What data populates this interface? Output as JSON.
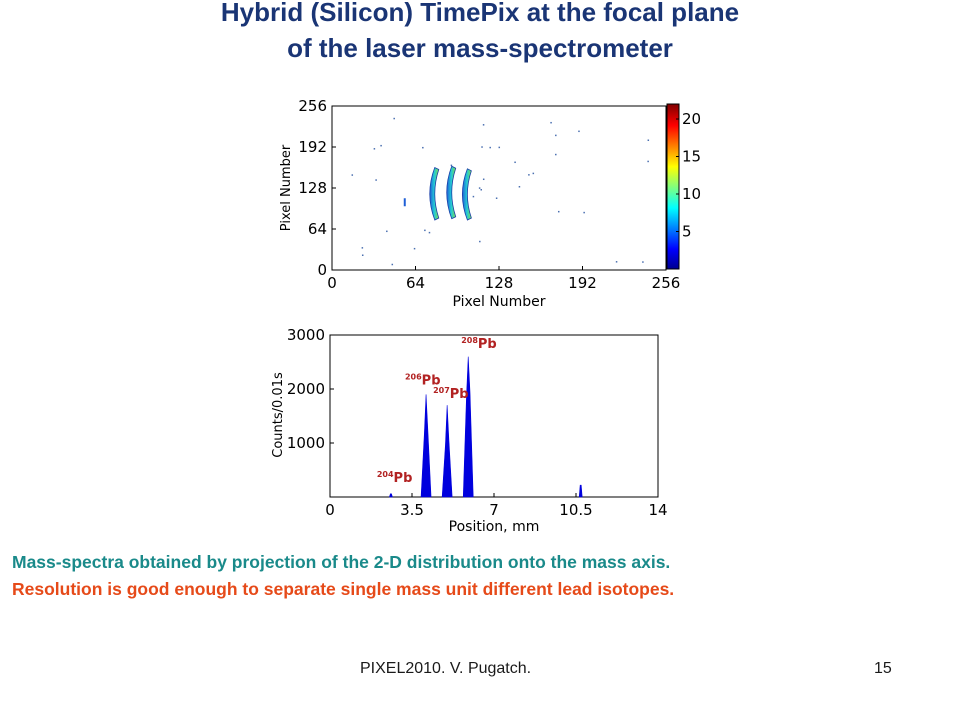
{
  "slide": {
    "title_line1": "Hybrid (Silicon) TimePix at the focal plane",
    "title_line2": "of the laser mass-spectrometer",
    "caption_line1": "Mass-spectra obtained by projection of the 2-D distribution onto the mass axis.",
    "caption_line2": "Resolution is good enough to separate single mass unit different lead isotopes.",
    "footer_left": "PIXEL2010. V. Pugatch.",
    "page_number": "15",
    "colors": {
      "title": "#1a3575",
      "caption1": "#1a8a8a",
      "caption2": "#e64a19",
      "isotope_label": "#b22222",
      "spectrum": "#0000dd"
    }
  },
  "chart_data": [
    {
      "type": "heatmap",
      "xlabel": "Pixel Number",
      "ylabel": "Pixel Number",
      "xlim": [
        0,
        256
      ],
      "ylim": [
        0,
        256
      ],
      "xticks": [
        "0",
        "64",
        "128",
        "192",
        "256"
      ],
      "yticks": [
        "0",
        "64",
        "128",
        "192",
        "256"
      ],
      "colorbar": {
        "ticks": [
          "5",
          "10",
          "15",
          "20"
        ],
        "range": [
          0,
          22
        ]
      },
      "arcs": [
        {
          "x_center": 78,
          "y_range": [
            78,
            160
          ]
        },
        {
          "x_center": 91,
          "y_range": [
            80,
            162
          ]
        },
        {
          "x_center": 103,
          "y_range": [
            78,
            158
          ]
        }
      ]
    },
    {
      "type": "area",
      "xlabel": "Position, mm",
      "ylabel": "Counts/0.01s",
      "xlim": [
        0,
        14
      ],
      "ylim": [
        0,
        3000
      ],
      "xticks": [
        "0",
        "3.5",
        "7",
        "10.5",
        "14"
      ],
      "yticks": [
        "1000",
        "2000",
        "3000"
      ],
      "peaks": [
        {
          "x": 2.6,
          "y": 60
        },
        {
          "x": 4.1,
          "y": 1900
        },
        {
          "x": 5.0,
          "y": 1700
        },
        {
          "x": 5.9,
          "y": 2600
        },
        {
          "x": 10.7,
          "y": 220
        }
      ],
      "annotations": [
        {
          "mass": "204",
          "element": "Pb",
          "x": 2.0,
          "y": 280
        },
        {
          "mass": "206",
          "element": "Pb",
          "x": 3.2,
          "y": 2080
        },
        {
          "mass": "207",
          "element": "Pb",
          "x": 4.4,
          "y": 1830
        },
        {
          "mass": "208",
          "element": "Pb",
          "x": 5.6,
          "y": 2760
        }
      ]
    }
  ]
}
